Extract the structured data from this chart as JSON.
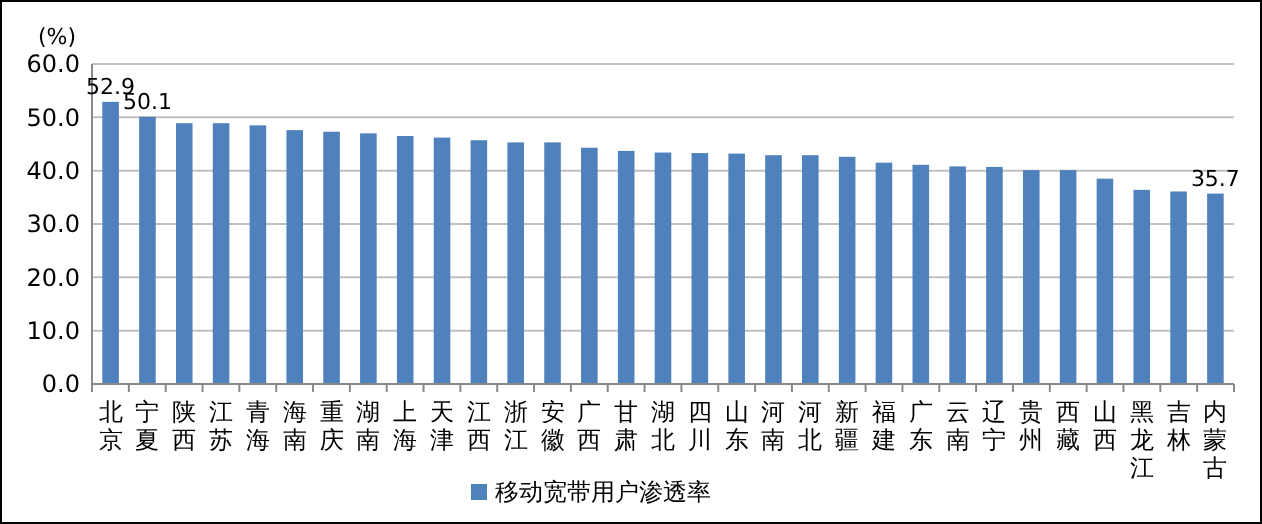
{
  "chart_data": {
    "type": "bar",
    "ylabel": "(%)",
    "categories": [
      "北京",
      "宁夏",
      "陕西",
      "江苏",
      "青海",
      "海南",
      "重庆",
      "湖南",
      "上海",
      "天津",
      "江西",
      "浙江",
      "安徽",
      "广西",
      "甘肃",
      "湖北",
      "四川",
      "山东",
      "河南",
      "河北",
      "新疆",
      "福建",
      "广东",
      "云南",
      "辽宁",
      "贵州",
      "西藏",
      "山西",
      "黑龙江",
      "吉林",
      "内蒙古"
    ],
    "series": [
      {
        "name": "移动宽带用户渗透率",
        "color": "#4f81bd",
        "values": [
          52.9,
          50.1,
          48.9,
          48.9,
          48.5,
          47.6,
          47.3,
          47.0,
          46.5,
          46.2,
          45.7,
          45.3,
          45.3,
          44.3,
          43.7,
          43.4,
          43.3,
          43.2,
          42.9,
          42.9,
          42.6,
          41.5,
          41.1,
          40.8,
          40.7,
          40.1,
          40.1,
          38.5,
          36.4,
          36.1,
          35.7
        ],
        "value_labels": [
          "52.9",
          "50.1",
          null,
          null,
          null,
          null,
          null,
          null,
          null,
          null,
          null,
          null,
          null,
          null,
          null,
          null,
          null,
          null,
          null,
          null,
          null,
          null,
          null,
          null,
          null,
          null,
          null,
          null,
          null,
          null,
          "35.7"
        ]
      }
    ],
    "ylim": [
      0,
      60
    ],
    "yticks": [
      {
        "value": 0,
        "label": "0.0"
      },
      {
        "value": 10,
        "label": "10.0"
      },
      {
        "value": 20,
        "label": "20.0"
      },
      {
        "value": 30,
        "label": "30.0"
      },
      {
        "value": 40,
        "label": "40.0"
      },
      {
        "value": 50,
        "label": "50.0"
      },
      {
        "value": 60,
        "label": "60.0"
      }
    ],
    "grid": "y",
    "legend": "bottom"
  }
}
